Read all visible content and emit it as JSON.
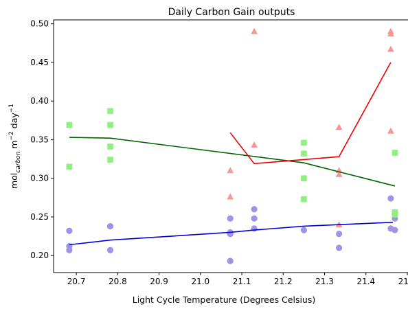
{
  "chart_data": {
    "type": "scatter",
    "title": "Daily Carbon Gain outputs",
    "xlabel": "Light Cycle Temperature (Degrees Celsius)",
    "ylabel": {
      "base": "mol",
      "sub": "carbon",
      "mid": " m",
      "sup1": "−2",
      "mid2": " day",
      "sup2": "−1"
    },
    "xlim": [
      20.645,
      21.505
    ],
    "ylim": [
      0.178,
      0.505
    ],
    "xticks": [
      20.7,
      20.8,
      20.9,
      21.0,
      21.1,
      21.2,
      21.3,
      21.4,
      21.5
    ],
    "xtick_labels": [
      "20.7",
      "20.8",
      "20.9",
      "21.0",
      "21.1",
      "21.2",
      "21.3",
      "21.4",
      "21.5"
    ],
    "yticks": [
      0.2,
      0.25,
      0.3,
      0.35,
      0.4,
      0.45,
      0.5
    ],
    "ytick_labels": [
      "0.20",
      "0.25",
      "0.30",
      "0.35",
      "0.40",
      "0.45",
      "0.50"
    ],
    "series": [
      {
        "marker": "circle",
        "marker_color": "#a093e6",
        "line_color": "#0000dd",
        "points": [
          [
            20.683,
            0.232
          ],
          [
            20.683,
            0.212
          ],
          [
            20.683,
            0.207
          ],
          [
            20.782,
            0.238
          ],
          [
            20.782,
            0.207
          ],
          [
            21.072,
            0.248
          ],
          [
            21.072,
            0.23
          ],
          [
            21.072,
            0.228
          ],
          [
            21.072,
            0.193
          ],
          [
            21.13,
            0.26
          ],
          [
            21.13,
            0.248
          ],
          [
            21.13,
            0.235
          ],
          [
            21.25,
            0.233
          ],
          [
            21.335,
            0.228
          ],
          [
            21.335,
            0.21
          ],
          [
            21.46,
            0.274
          ],
          [
            21.46,
            0.235
          ],
          [
            21.47,
            0.256
          ],
          [
            21.47,
            0.253
          ],
          [
            21.47,
            0.248
          ],
          [
            21.47,
            0.233
          ]
        ],
        "line": [
          [
            20.683,
            0.214
          ],
          [
            20.782,
            0.22
          ],
          [
            21.072,
            0.23
          ],
          [
            21.13,
            0.233
          ],
          [
            21.25,
            0.238
          ],
          [
            21.335,
            0.24
          ],
          [
            21.465,
            0.243
          ]
        ]
      },
      {
        "marker": "square",
        "marker_color": "#90ee82",
        "line_color": "#006400",
        "points": [
          [
            20.683,
            0.369
          ],
          [
            20.683,
            0.315
          ],
          [
            20.782,
            0.387
          ],
          [
            20.782,
            0.369
          ],
          [
            20.782,
            0.341
          ],
          [
            20.782,
            0.324
          ],
          [
            21.25,
            0.346
          ],
          [
            21.25,
            0.332
          ],
          [
            21.25,
            0.3
          ],
          [
            21.25,
            0.273
          ],
          [
            21.47,
            0.333
          ],
          [
            21.47,
            0.256
          ],
          [
            21.47,
            0.253
          ]
        ],
        "line": [
          [
            20.683,
            0.353
          ],
          [
            20.782,
            0.352
          ],
          [
            21.25,
            0.32
          ],
          [
            21.47,
            0.29
          ]
        ]
      },
      {
        "marker": "triangle",
        "marker_color": "#f59795",
        "line_color": "#ee0000",
        "points": [
          [
            21.072,
            0.31
          ],
          [
            21.072,
            0.276
          ],
          [
            21.13,
            0.49
          ],
          [
            21.13,
            0.343
          ],
          [
            21.335,
            0.366
          ],
          [
            21.335,
            0.31
          ],
          [
            21.335,
            0.305
          ],
          [
            21.335,
            0.24
          ],
          [
            21.46,
            0.49
          ],
          [
            21.46,
            0.487
          ],
          [
            21.46,
            0.467
          ],
          [
            21.46,
            0.361
          ]
        ],
        "line": [
          [
            21.072,
            0.359
          ],
          [
            21.13,
            0.319
          ],
          [
            21.335,
            0.328
          ],
          [
            21.46,
            0.45
          ]
        ]
      }
    ]
  }
}
